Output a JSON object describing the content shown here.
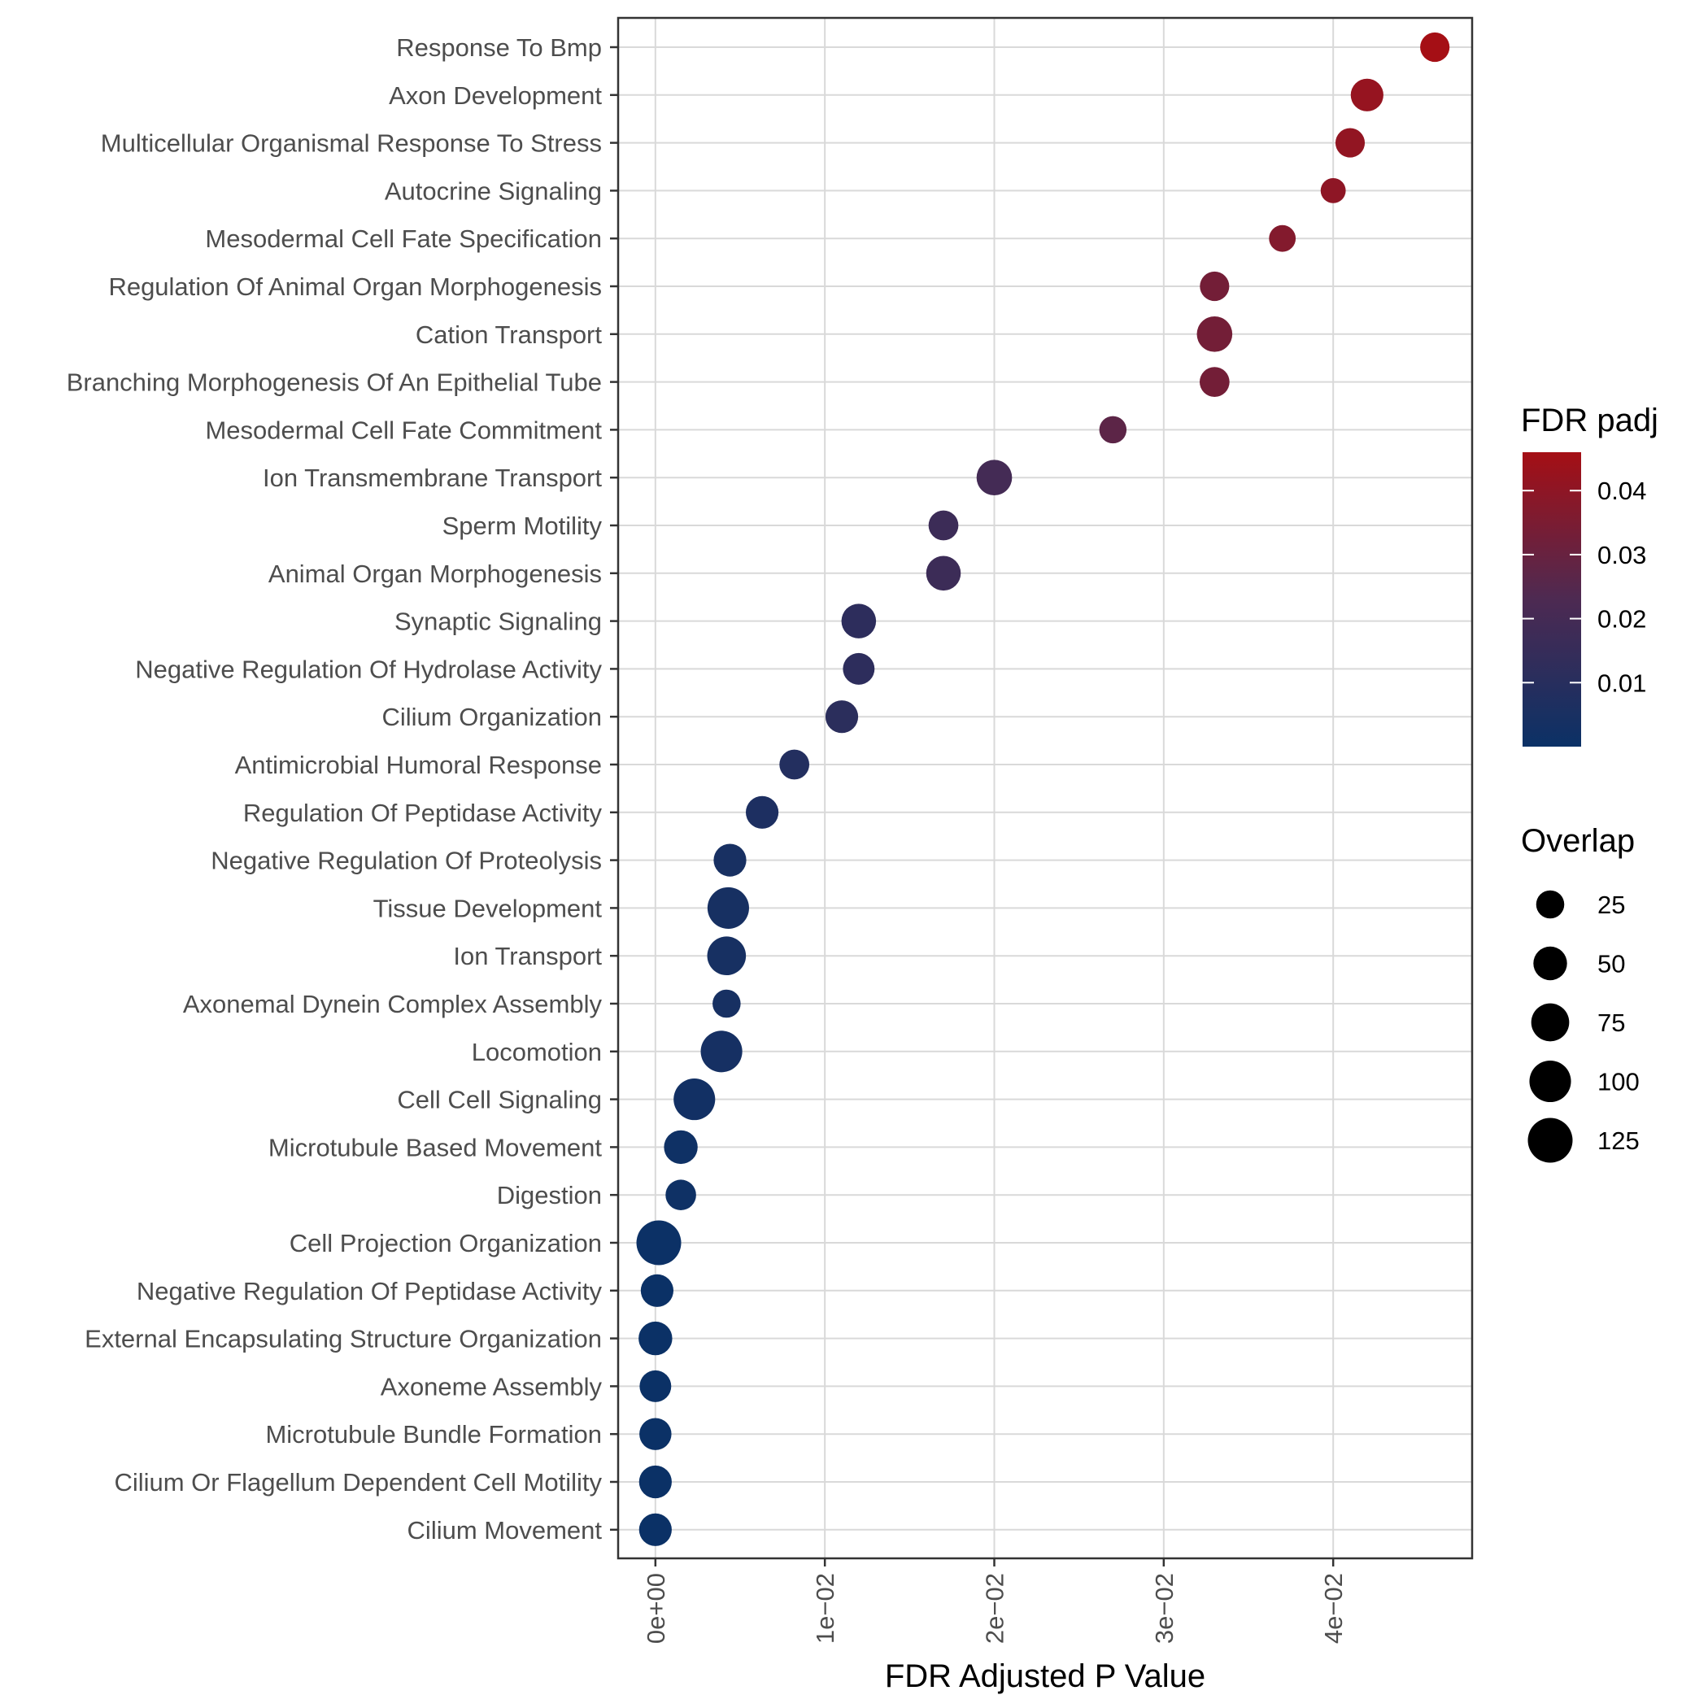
{
  "chart_data": {
    "type": "scatter",
    "xlabel": "FDR Adjusted P Value",
    "ylabel": "",
    "xlim": [
      -0.0022,
      0.0482
    ],
    "xticks": [
      0,
      0.01,
      0.02,
      0.03,
      0.04
    ],
    "xtick_labels": [
      "0e+00",
      "1e−02",
      "2e−02",
      "3e−02",
      "4e−02"
    ],
    "grid": true,
    "legend_position": "right",
    "categories": [
      "Response To Bmp",
      "Axon Development",
      "Multicellular Organismal Response To Stress",
      "Autocrine Signaling",
      "Mesodermal Cell Fate Specification",
      "Regulation Of Animal Organ Morphogenesis",
      "Cation Transport",
      "Branching Morphogenesis Of An Epithelial Tube",
      "Mesodermal Cell Fate Commitment",
      "Ion Transmembrane Transport",
      "Sperm Motility",
      "Animal Organ Morphogenesis",
      "Synaptic Signaling",
      "Negative Regulation Of Hydrolase Activity",
      "Cilium Organization",
      "Antimicrobial Humoral Response",
      "Regulation Of Peptidase Activity",
      "Negative Regulation Of Proteolysis",
      "Tissue Development",
      "Ion Transport",
      "Axonemal Dynein Complex Assembly",
      "Locomotion",
      "Cell Cell Signaling",
      "Microtubule Based Movement",
      "Digestion",
      "Cell Projection Organization",
      "Negative Regulation Of Peptidase Activity",
      "External Encapsulating Structure Organization",
      "Axoneme Assembly",
      "Microtubule Bundle Formation",
      "Cilium Or Flagellum Dependent Cell Motility",
      "Cilium Movement"
    ],
    "points": [
      {
        "term": "Response To Bmp",
        "padj": 0.046,
        "overlap": 30
      },
      {
        "term": "Axon Development",
        "padj": 0.042,
        "overlap": 45
      },
      {
        "term": "Multicellular Organismal Response To Stress",
        "padj": 0.041,
        "overlap": 30
      },
      {
        "term": "Autocrine Signaling",
        "padj": 0.04,
        "overlap": 15
      },
      {
        "term": "Mesodermal Cell Fate Specification",
        "padj": 0.037,
        "overlap": 20
      },
      {
        "term": "Regulation Of Animal Organ Morphogenesis",
        "padj": 0.033,
        "overlap": 30
      },
      {
        "term": "Cation Transport",
        "padj": 0.033,
        "overlap": 60
      },
      {
        "term": "Branching Morphogenesis Of An Epithelial Tube",
        "padj": 0.033,
        "overlap": 32
      },
      {
        "term": "Mesodermal Cell Fate Commitment",
        "padj": 0.027,
        "overlap": 22
      },
      {
        "term": "Ion Transmembrane Transport",
        "padj": 0.02,
        "overlap": 60
      },
      {
        "term": "Sperm Motility",
        "padj": 0.017,
        "overlap": 32
      },
      {
        "term": "Animal Organ Morphogenesis",
        "padj": 0.017,
        "overlap": 55
      },
      {
        "term": "Synaptic Signaling",
        "padj": 0.012,
        "overlap": 55
      },
      {
        "term": "Negative Regulation Of Hydrolase Activity",
        "padj": 0.012,
        "overlap": 40
      },
      {
        "term": "Cilium Organization",
        "padj": 0.011,
        "overlap": 45
      },
      {
        "term": "Antimicrobial Humoral Response",
        "padj": 0.0082,
        "overlap": 32
      },
      {
        "term": "Regulation Of Peptidase Activity",
        "padj": 0.0063,
        "overlap": 45
      },
      {
        "term": "Negative Regulation Of Proteolysis",
        "padj": 0.0044,
        "overlap": 45
      },
      {
        "term": "Tissue Development",
        "padj": 0.0043,
        "overlap": 100
      },
      {
        "term": "Ion Transport",
        "padj": 0.0042,
        "overlap": 80
      },
      {
        "term": "Axonemal Dynein Complex Assembly",
        "padj": 0.0042,
        "overlap": 25
      },
      {
        "term": "Locomotion",
        "padj": 0.0039,
        "overlap": 100
      },
      {
        "term": "Cell Cell Signaling",
        "padj": 0.0023,
        "overlap": 100
      },
      {
        "term": "Microtubule Based Movement",
        "padj": 0.0015,
        "overlap": 50
      },
      {
        "term": "Digestion",
        "padj": 0.0015,
        "overlap": 35
      },
      {
        "term": "Cell Projection Organization",
        "padj": 0.0002,
        "overlap": 125
      },
      {
        "term": "Negative Regulation Of Peptidase Activity",
        "padj": 0.0001,
        "overlap": 45
      },
      {
        "term": "External Encapsulating Structure Organization",
        "padj": 0.0,
        "overlap": 50
      },
      {
        "term": "Axoneme Assembly",
        "padj": 0.0,
        "overlap": 40
      },
      {
        "term": "Microtubule Bundle Formation",
        "padj": 0.0,
        "overlap": 42
      },
      {
        "term": "Cilium Or Flagellum Dependent Cell Motility",
        "padj": 0.0,
        "overlap": 45
      },
      {
        "term": "Cilium Movement",
        "padj": 0.0,
        "overlap": 45
      }
    ],
    "color_legend": {
      "title": "FDR padj",
      "range": [
        0,
        0.046
      ],
      "ticks": [
        0.04,
        0.03,
        0.02,
        0.01
      ],
      "tick_labels": [
        "0.04",
        "0.03",
        "0.02",
        "0.01"
      ],
      "low_color": "#0b3166",
      "mid_color": "#4d2a52",
      "high_color": "#a50f15"
    },
    "size_legend": {
      "title": "Overlap",
      "values": [
        25,
        50,
        75,
        100,
        125
      ],
      "labels": [
        "25",
        "50",
        "75",
        "100",
        "125"
      ]
    }
  }
}
